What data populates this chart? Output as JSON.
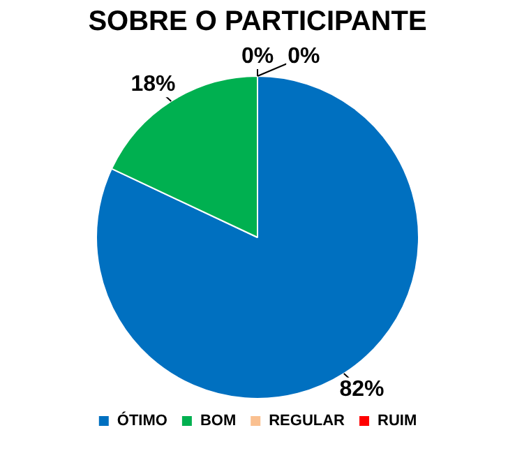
{
  "chart_data": {
    "type": "pie",
    "title": "SOBRE O PARTICIPANTE",
    "categories": [
      "ÓTIMO",
      "BOM",
      "REGULAR",
      "RUIM"
    ],
    "values": [
      82,
      18,
      0,
      0
    ],
    "colors": [
      "#0070c0",
      "#00b050",
      "#fac090",
      "#ff0000"
    ],
    "value_labels": [
      "82%",
      "18%",
      "0%",
      "0%"
    ],
    "legend": "bottom"
  }
}
